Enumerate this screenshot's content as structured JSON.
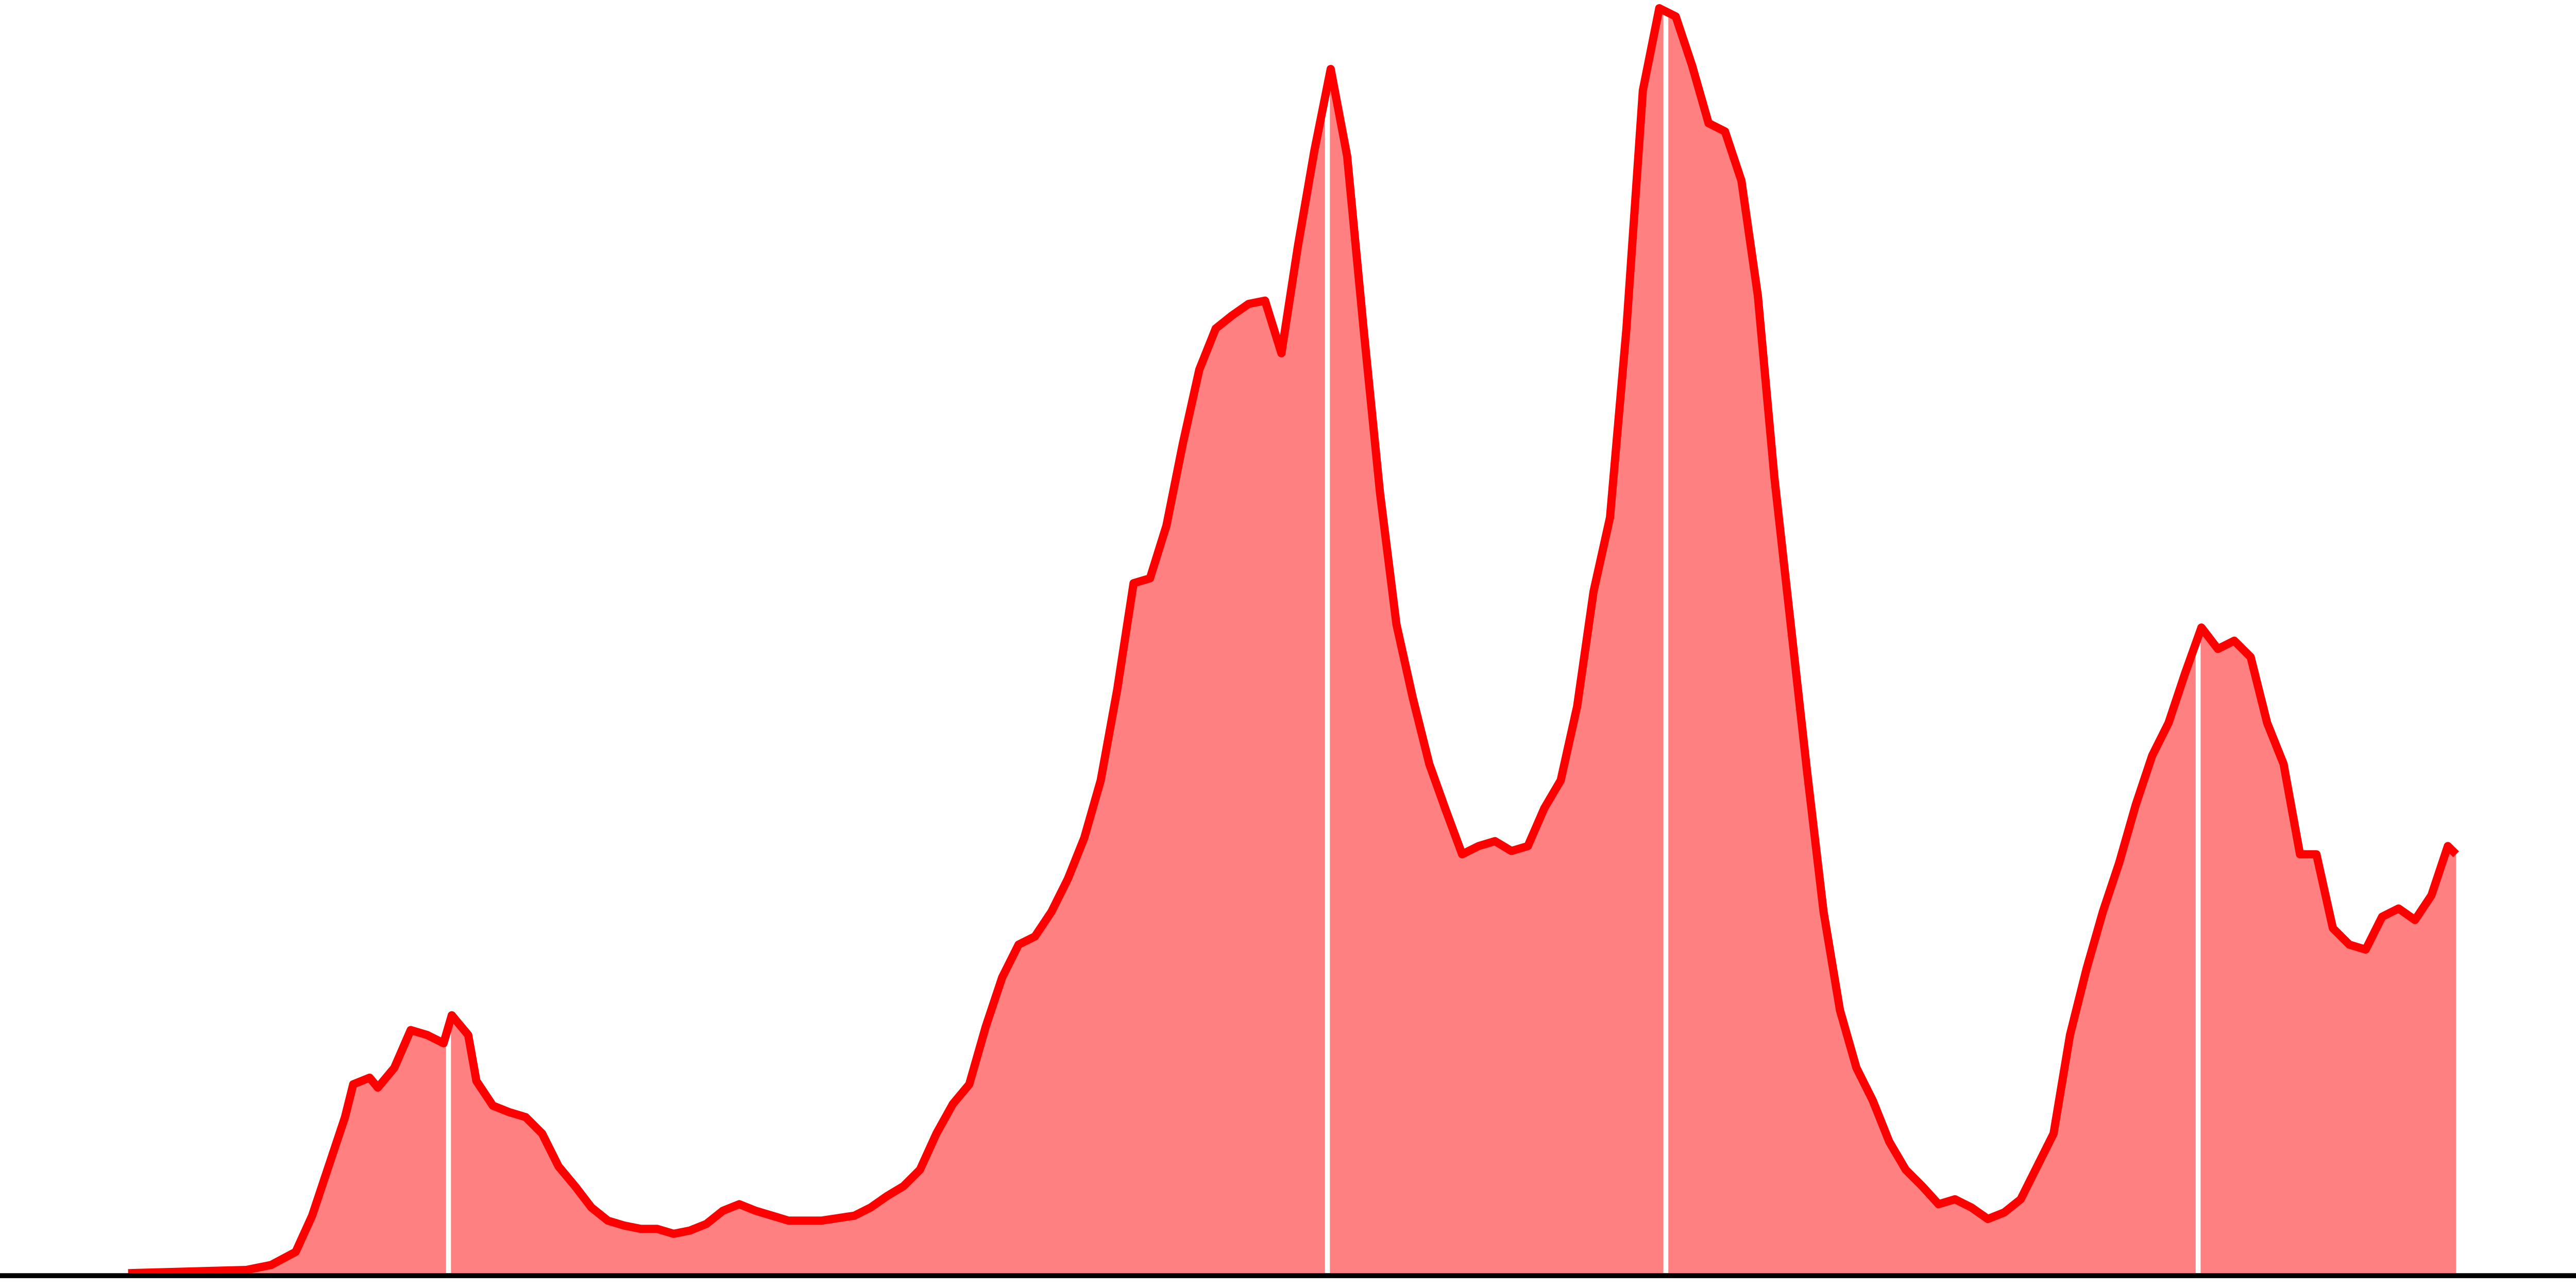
{
  "chart_data": {
    "type": "area",
    "x": [
      78,
      150,
      165,
      180,
      190,
      200,
      210,
      215,
      225,
      230,
      240,
      250,
      260,
      270,
      275,
      285,
      290,
      300,
      310,
      320,
      330,
      340,
      350,
      360,
      370,
      380,
      390,
      400,
      410,
      420,
      430,
      440,
      450,
      460,
      470,
      480,
      500,
      520,
      530,
      540,
      550,
      560,
      570,
      580,
      590,
      600,
      610,
      620,
      630,
      640,
      650,
      660,
      670,
      680,
      690,
      700,
      710,
      720,
      730,
      740,
      750,
      760,
      770,
      780,
      790,
      800,
      810,
      820,
      830,
      840,
      850,
      860,
      870,
      880,
      890,
      900,
      910,
      920,
      930,
      940,
      950,
      960,
      970,
      980,
      990,
      1000,
      1010,
      1020,
      1030,
      1040,
      1050,
      1060,
      1070,
      1080,
      1090,
      1100,
      1110,
      1120,
      1130,
      1140,
      1150,
      1160,
      1170,
      1180,
      1190,
      1200,
      1210,
      1220,
      1230,
      1240,
      1250,
      1260,
      1270,
      1280,
      1290,
      1300,
      1310,
      1320,
      1330,
      1340,
      1350,
      1360,
      1370,
      1380,
      1390,
      1400,
      1410,
      1420,
      1430,
      1440,
      1450,
      1460,
      1470,
      1480,
      1490,
      1495
    ],
    "values": [
      0,
      2,
      5,
      13,
      35,
      65,
      95,
      115,
      119,
      113,
      125,
      148,
      145,
      140,
      157,
      145,
      117,
      102,
      98,
      95,
      85,
      65,
      53,
      40,
      32,
      29,
      27,
      27,
      24,
      26,
      30,
      38,
      42,
      38,
      35,
      32,
      32,
      35,
      40,
      47,
      53,
      63,
      85,
      103,
      115,
      150,
      180,
      200,
      205,
      220,
      240,
      265,
      300,
      355,
      420,
      423,
      455,
      505,
      550,
      575,
      583,
      590,
      592,
      560,
      625,
      683,
      733,
      680,
      575,
      475,
      395,
      350,
      310,
      282,
      255,
      260,
      263,
      257,
      260,
      283,
      300,
      345,
      415,
      460,
      575,
      720,
      770,
      765,
      735,
      700,
      695,
      665,
      595,
      485,
      395,
      305,
      220,
      160,
      125,
      105,
      80,
      63,
      53,
      42,
      45,
      40,
      33,
      37,
      45,
      65,
      85,
      145,
      185,
      220,
      250,
      285,
      315,
      335,
      365,
      393,
      380,
      385,
      375,
      335,
      310,
      255,
      255,
      210,
      200,
      197,
      217,
      222,
      215,
      230,
      260,
      255
    ],
    "markers": [
      273,
      808,
      1014,
      1338
    ],
    "color": "#ff0000",
    "fill": "#ff8080",
    "marker_color": "#ffffff",
    "xlim": [
      0,
      1568
    ],
    "ylim": [
      0,
      775
    ]
  }
}
